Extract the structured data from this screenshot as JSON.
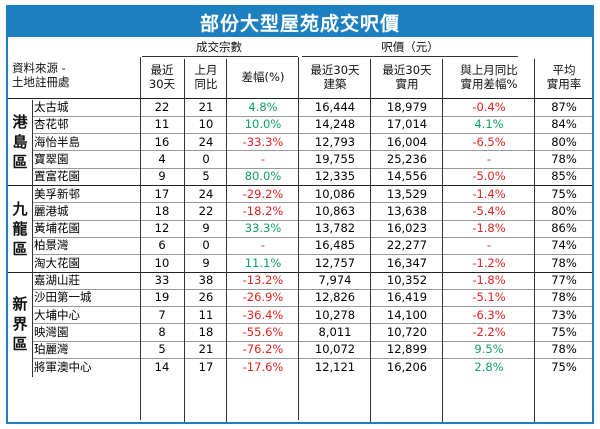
{
  "title": "部份大型屋苑成交呎價",
  "header": {
    "source_line1": "資料來源 -",
    "source_line2": "土地註冊處",
    "group_transactions": "成交宗數",
    "group_price": "呎價（元）",
    "col_recent30": [
      "最近",
      "30天"
    ],
    "col_last_month": [
      "上月",
      "同比"
    ],
    "col_change_pct": "差幅(%)",
    "col_gross30": [
      "最近30天",
      "建築"
    ],
    "col_net30": [
      "最近30天",
      "實用"
    ],
    "col_net_change": [
      "與上月同比",
      "實用差幅%"
    ],
    "col_efficiency": [
      "平均",
      "實用率"
    ]
  },
  "regions": [
    {
      "name": [
        "港",
        "島",
        "區"
      ],
      "rows": [
        {
          "estate": "太古城",
          "recent": "22",
          "last": "21",
          "chg": "4.8%",
          "chg_sign": "pos",
          "gross": "16,444",
          "net": "18,979",
          "net_chg": "-0.4%",
          "net_sign": "neg",
          "eff": "87%"
        },
        {
          "estate": "杏花邨",
          "recent": "11",
          "last": "10",
          "chg": "10.0%",
          "chg_sign": "pos",
          "gross": "14,248",
          "net": "17,014",
          "net_chg": "4.1%",
          "net_sign": "pos",
          "eff": "84%"
        },
        {
          "estate": "海怡半島",
          "recent": "16",
          "last": "24",
          "chg": "-33.3%",
          "chg_sign": "neg",
          "gross": "12,793",
          "net": "16,004",
          "net_chg": "-6.5%",
          "net_sign": "neg",
          "eff": "80%"
        },
        {
          "estate": "寶翠園",
          "recent": "4",
          "last": "0",
          "chg": "-",
          "chg_sign": "neu",
          "gross": "19,755",
          "net": "25,236",
          "net_chg": "-",
          "net_sign": "neu",
          "eff": "78%"
        },
        {
          "estate": "置富花園",
          "recent": "9",
          "last": "5",
          "chg": "80.0%",
          "chg_sign": "pos",
          "gross": "12,335",
          "net": "14,556",
          "net_chg": "-5.0%",
          "net_sign": "neg",
          "eff": "85%"
        }
      ]
    },
    {
      "name": [
        "九",
        "龍",
        "區"
      ],
      "rows": [
        {
          "estate": "美孚新邨",
          "recent": "17",
          "last": "24",
          "chg": "-29.2%",
          "chg_sign": "neg",
          "gross": "10,086",
          "net": "13,529",
          "net_chg": "-1.4%",
          "net_sign": "neg",
          "eff": "75%"
        },
        {
          "estate": "麗港城",
          "recent": "18",
          "last": "22",
          "chg": "-18.2%",
          "chg_sign": "neg",
          "gross": "10,863",
          "net": "13,638",
          "net_chg": "-5.4%",
          "net_sign": "neg",
          "eff": "80%"
        },
        {
          "estate": "黃埔花園",
          "recent": "12",
          "last": "9",
          "chg": "33.3%",
          "chg_sign": "pos",
          "gross": "13,782",
          "net": "16,023",
          "net_chg": "-1.8%",
          "net_sign": "neg",
          "eff": "86%"
        },
        {
          "estate": "柏景灣",
          "recent": "6",
          "last": "0",
          "chg": "-",
          "chg_sign": "neu",
          "gross": "16,485",
          "net": "22,277",
          "net_chg": "-",
          "net_sign": "neu",
          "eff": "74%"
        },
        {
          "estate": "淘大花園",
          "recent": "10",
          "last": "9",
          "chg": "11.1%",
          "chg_sign": "pos",
          "gross": "12,757",
          "net": "16,347",
          "net_chg": "-1.2%",
          "net_sign": "neg",
          "eff": "78%"
        }
      ]
    },
    {
      "name": [
        "新",
        "界",
        "區"
      ],
      "rows": [
        {
          "estate": "嘉湖山莊",
          "recent": "33",
          "last": "38",
          "chg": "-13.2%",
          "chg_sign": "neg",
          "gross": "7,974",
          "net": "10,352",
          "net_chg": "-1.8%",
          "net_sign": "neg",
          "eff": "77%"
        },
        {
          "estate": "沙田第一城",
          "recent": "19",
          "last": "26",
          "chg": "-26.9%",
          "chg_sign": "neg",
          "gross": "12,826",
          "net": "16,419",
          "net_chg": "-5.1%",
          "net_sign": "neg",
          "eff": "78%"
        },
        {
          "estate": "大埔中心",
          "recent": "7",
          "last": "11",
          "chg": "-36.4%",
          "chg_sign": "neg",
          "gross": "10,278",
          "net": "14,100",
          "net_chg": "-6.3%",
          "net_sign": "neg",
          "eff": "73%"
        },
        {
          "estate": "映灣園",
          "recent": "8",
          "last": "18",
          "chg": "-55.6%",
          "chg_sign": "neg",
          "gross": "8,011",
          "net": "10,720",
          "net_chg": "-2.2%",
          "net_sign": "neg",
          "eff": "75%"
        },
        {
          "estate": "珀麗灣",
          "recent": "5",
          "last": "21",
          "chg": "-76.2%",
          "chg_sign": "neg",
          "gross": "10,072",
          "net": "12,899",
          "net_chg": "9.5%",
          "net_sign": "pos",
          "eff": "78%"
        },
        {
          "estate": "將軍澳中心",
          "recent": "14",
          "last": "17",
          "chg": "-17.6%",
          "chg_sign": "neg",
          "gross": "12,121",
          "net": "16,206",
          "net_chg": "2.8%",
          "net_sign": "pos",
          "eff": "75%"
        }
      ]
    }
  ],
  "colors": {
    "accent": "#1c7fc0",
    "positive": "#11a060",
    "negative": "#e0241e"
  }
}
